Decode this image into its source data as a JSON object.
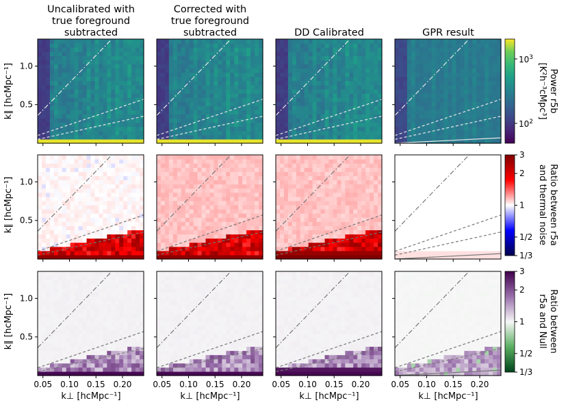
{
  "chart_data": {
    "type": "heatmap",
    "columns": [
      {
        "title_lines": [
          "Uncalibrated with",
          "true foreground",
          "subtracted"
        ]
      },
      {
        "title_lines": [
          "Corrected with",
          "true foreground",
          "subtracted"
        ]
      },
      {
        "title_lines": [
          "DD Calibrated"
        ]
      },
      {
        "title_lines": [
          "GPR result"
        ]
      }
    ],
    "rows": [
      {
        "quantity": "power",
        "colormap": "viridis",
        "colorbar_scale": "log",
        "colorbar_range": [
          50,
          1800
        ],
        "colorbar_ticks": [
          {
            "value": 100,
            "base": "10",
            "exp": "2"
          },
          {
            "value": 1000,
            "base": "10",
            "exp": "3"
          }
        ],
        "colorbar_label_lines": [
          "Power r5b",
          "[K²h⁻³cMpc³]"
        ]
      },
      {
        "quantity": "ratio",
        "colormap": "seismic",
        "colorbar_scale": "log",
        "colorbar_range": [
          0.3333,
          3
        ],
        "colorbar_ticks": [
          {
            "value": 0.3333,
            "label": "1/3"
          },
          {
            "value": 0.5,
            "label": "1/2"
          },
          {
            "value": 1,
            "label": "1"
          },
          {
            "value": 2,
            "label": "2"
          },
          {
            "value": 3,
            "label": "3"
          }
        ],
        "colorbar_label_lines": [
          "Ratio between r5a",
          "and thermal noise"
        ]
      },
      {
        "quantity": "ratio",
        "colormap": "PRGn",
        "colorbar_scale": "log",
        "colorbar_range": [
          0.3333,
          3
        ],
        "colorbar_ticks": [
          {
            "value": 0.3333,
            "label": "1/3"
          },
          {
            "value": 0.5,
            "label": "1/2"
          },
          {
            "value": 1,
            "label": "1"
          },
          {
            "value": 2,
            "label": "2"
          },
          {
            "value": 3,
            "label": "3"
          }
        ],
        "colorbar_label_lines": [
          "Ratio between",
          "r5a and Null"
        ]
      }
    ],
    "xlabel": "k⊥ [hcMpc⁻¹]",
    "ylabel": "k∥ [hcMpc⁻¹]",
    "xlim": [
      0.04,
      0.24
    ],
    "ylim": [
      0.0,
      1.35
    ],
    "xticks": [
      0.05,
      0.1,
      0.15,
      0.2
    ],
    "xtick_labels": [
      "0.05",
      "0.10",
      "0.15",
      "0.20"
    ],
    "yticks": [
      0.5,
      1.0
    ],
    "ytick_labels": [
      "0.5",
      "1.0"
    ],
    "reference_lines": [
      {
        "style": "dash-dot",
        "x": [
          0.04,
          0.18
        ],
        "y": [
          0.36,
          1.35
        ]
      },
      {
        "style": "dashed",
        "x": [
          0.04,
          0.24
        ],
        "y": [
          0.1,
          0.57
        ]
      },
      {
        "style": "dashed",
        "x": [
          0.04,
          0.24
        ],
        "y": [
          0.05,
          0.35
        ]
      },
      {
        "style": "solid",
        "x": [
          0.04,
          0.24
        ],
        "y": [
          0.0,
          0.07
        ]
      }
    ]
  }
}
